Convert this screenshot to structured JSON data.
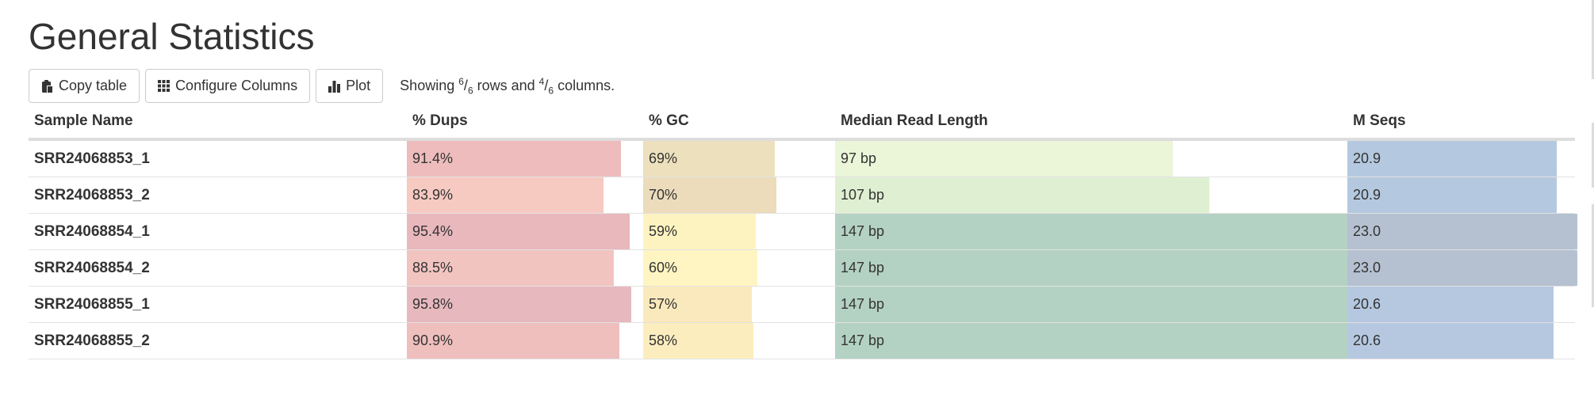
{
  "page": {
    "title": "General Statistics"
  },
  "toolbar": {
    "copy_label": "Copy table",
    "configure_label": "Configure Columns",
    "plot_label": "Plot",
    "status": {
      "prefix": "Showing ",
      "rows_shown": "6",
      "rows_total": "6",
      "rows_word": " rows and ",
      "cols_shown": "4",
      "cols_total": "6",
      "cols_word": " columns."
    }
  },
  "table": {
    "headers": [
      "Sample Name",
      "% Dups",
      "% GC",
      "Median Read Length",
      "M Seqs"
    ],
    "rows": [
      {
        "name": "SRR24068853_1",
        "dups": "91.4%",
        "gc": "69%",
        "len": "97 bp",
        "mseqs": "20.9"
      },
      {
        "name": "SRR24068853_2",
        "dups": "83.9%",
        "gc": "70%",
        "len": "107 bp",
        "mseqs": "20.9"
      },
      {
        "name": "SRR24068854_1",
        "dups": "95.4%",
        "gc": "59%",
        "len": "147 bp",
        "mseqs": "23.0"
      },
      {
        "name": "SRR24068854_2",
        "dups": "88.5%",
        "gc": "60%",
        "len": "147 bp",
        "mseqs": "23.0"
      },
      {
        "name": "SRR24068855_1",
        "dups": "95.8%",
        "gc": "57%",
        "len": "147 bp",
        "mseqs": "20.6"
      },
      {
        "name": "SRR24068855_2",
        "dups": "90.9%",
        "gc": "58%",
        "len": "147 bp",
        "mseqs": "20.6"
      }
    ],
    "fill_fractions": {
      "dups": [
        0.914,
        0.839,
        0.954,
        0.885,
        0.958,
        0.909
      ],
      "gc": [
        0.69,
        0.7,
        0.59,
        0.6,
        0.57,
        0.58
      ],
      "len": [
        0.66,
        0.73,
        1.0,
        1.0,
        1.0,
        1.0
      ],
      "mseqs": [
        0.909,
        0.909,
        1.0,
        1.0,
        0.896,
        0.896
      ]
    },
    "bar_colors": {
      "dups": [
        "#eebcbc",
        "#f6c9c1",
        "#e8b8bc",
        "#f1c4c0",
        "#e8b8bf",
        "#efbfbe"
      ],
      "gc": [
        "#ede0bd",
        "#ecdcbc",
        "#fdf3c0",
        "#fef5c2",
        "#fae9bc",
        "#fcedbe"
      ],
      "len": [
        "#ebf6d9",
        "#dff0d2",
        "#b4d2c4",
        "#b4d2c4",
        "#b4d2c4",
        "#b4d2c4"
      ],
      "mseqs": [
        "#b4c9df",
        "#b4c9df",
        "#b5c1d1",
        "#b5c1d1",
        "#b5c8e0",
        "#b5c8e0"
      ]
    }
  }
}
